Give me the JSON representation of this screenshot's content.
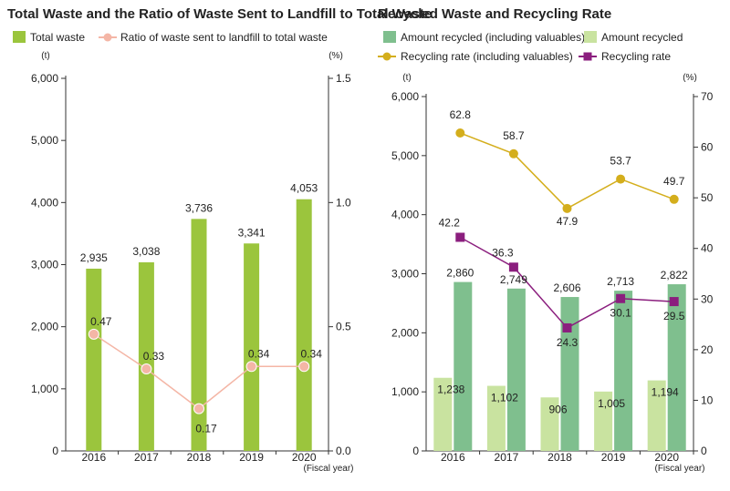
{
  "chart_data": [
    {
      "type": "bar",
      "title": "Total Waste and the Ratio of Waste Sent to Landfill to Total Waste",
      "categories": [
        "2016",
        "2017",
        "2018",
        "2019",
        "2020"
      ],
      "x_unit": "(Fiscal year)",
      "y_left_unit": "(t)",
      "y_right_unit": "(%)",
      "y_left_ticks": [
        "0",
        "1,000",
        "2,000",
        "3,000",
        "4,000",
        "5,000",
        "6,000"
      ],
      "y_right_ticks": [
        "0.0",
        "0.5",
        "1.0",
        "1.5"
      ],
      "ylim_left": [
        0,
        6000
      ],
      "ylim_right": [
        0,
        1.5
      ],
      "grid": false,
      "legend_position": "top",
      "series": [
        {
          "name": "Total waste",
          "kind": "bar",
          "axis": "left",
          "color": "#9bc53d",
          "values": [
            2935,
            3038,
            3736,
            3341,
            4053
          ],
          "labels": [
            "2,935",
            "3,038",
            "3,736",
            "3,341",
            "4,053"
          ]
        },
        {
          "name": "Ratio of waste sent to landfill to total waste",
          "kind": "line",
          "axis": "right",
          "color": "#f4b6a6",
          "values": [
            0.47,
            0.33,
            0.17,
            0.34,
            0.34
          ],
          "labels": [
            "0.47",
            "0.33",
            "0.17",
            "0.34",
            "0.34"
          ]
        }
      ]
    },
    {
      "type": "bar",
      "title": "Recycled Waste and Recycling Rate",
      "categories": [
        "2016",
        "2017",
        "2018",
        "2019",
        "2020"
      ],
      "x_unit": "(Fiscal year)",
      "y_left_unit": "(t)",
      "y_right_unit": "(%)",
      "y_left_ticks": [
        "0",
        "1,000",
        "2,000",
        "3,000",
        "4,000",
        "5,000",
        "6,000"
      ],
      "y_right_ticks": [
        "0",
        "10",
        "20",
        "30",
        "40",
        "50",
        "60",
        "70"
      ],
      "ylim_left": [
        0,
        6000
      ],
      "ylim_right": [
        0,
        70
      ],
      "grid": false,
      "legend_position": "top",
      "series": [
        {
          "name": "Amount recycled (including valuables)",
          "kind": "bar",
          "axis": "left",
          "color": "#7fbf8e",
          "values": [
            2860,
            2749,
            2606,
            2713,
            2822
          ],
          "labels": [
            "2,860",
            "2,749",
            "2,606",
            "2,713",
            "2,822"
          ]
        },
        {
          "name": "Amount recycled",
          "kind": "bar",
          "axis": "left",
          "color": "#c9e3a0",
          "values": [
            1238,
            1102,
            906,
            1005,
            1194
          ],
          "labels": [
            "1,238",
            "1,102",
            "906",
            "1,005",
            "1,194"
          ]
        },
        {
          "name": "Recycling rate (including valuables)",
          "kind": "line",
          "axis": "right",
          "color": "#d4ae1c",
          "values": [
            62.8,
            58.7,
            47.9,
            53.7,
            49.7
          ],
          "labels": [
            "62.8",
            "58.7",
            "47.9",
            "53.7",
            "49.7"
          ]
        },
        {
          "name": "Recycling rate",
          "kind": "line",
          "axis": "right",
          "color": "#8b1e7e",
          "values": [
            42.2,
            36.3,
            24.3,
            30.1,
            29.5
          ],
          "labels": [
            "42.2",
            "36.3",
            "24.3",
            "30.1",
            "29.5"
          ]
        }
      ]
    }
  ]
}
